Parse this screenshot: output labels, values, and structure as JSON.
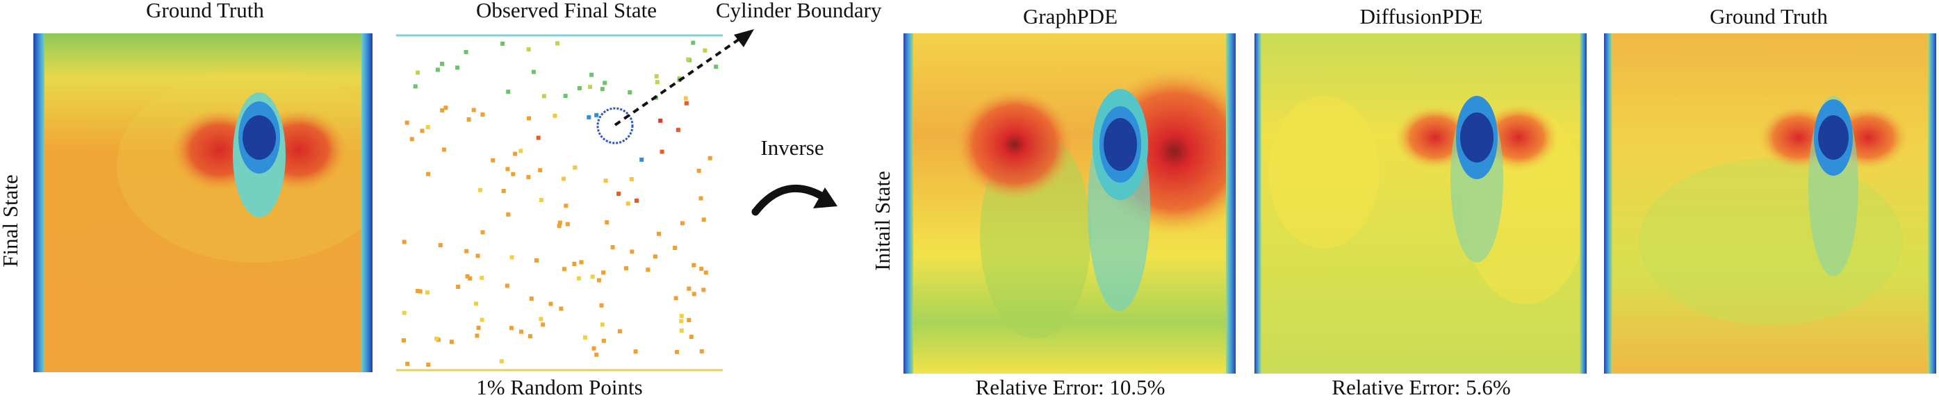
{
  "figure": {
    "left_block": {
      "row_label": "Final State",
      "panel_gt": {
        "title": "Ground Truth"
      },
      "panel_observed": {
        "title": "Observed Final State",
        "caption": "1% Random Points",
        "annotation": "Cylinder Boundary"
      }
    },
    "arrow_label": "Inverse",
    "right_block": {
      "row_label": "Initail State",
      "panels": [
        {
          "title": "GraphPDE",
          "caption": "Relative Error: 10.5%"
        },
        {
          "title": "DiffusionPDE",
          "caption": "Relative Error: 5.6%"
        },
        {
          "title": "Ground Truth",
          "caption": ""
        }
      ]
    },
    "colors": {
      "hot": "#e03a2a",
      "warm": "#f0a030",
      "mid": "#f2e24a",
      "cool": "#9ccf5a",
      "cold": "#1d3d9a",
      "boundary": "#2855c8"
    }
  }
}
